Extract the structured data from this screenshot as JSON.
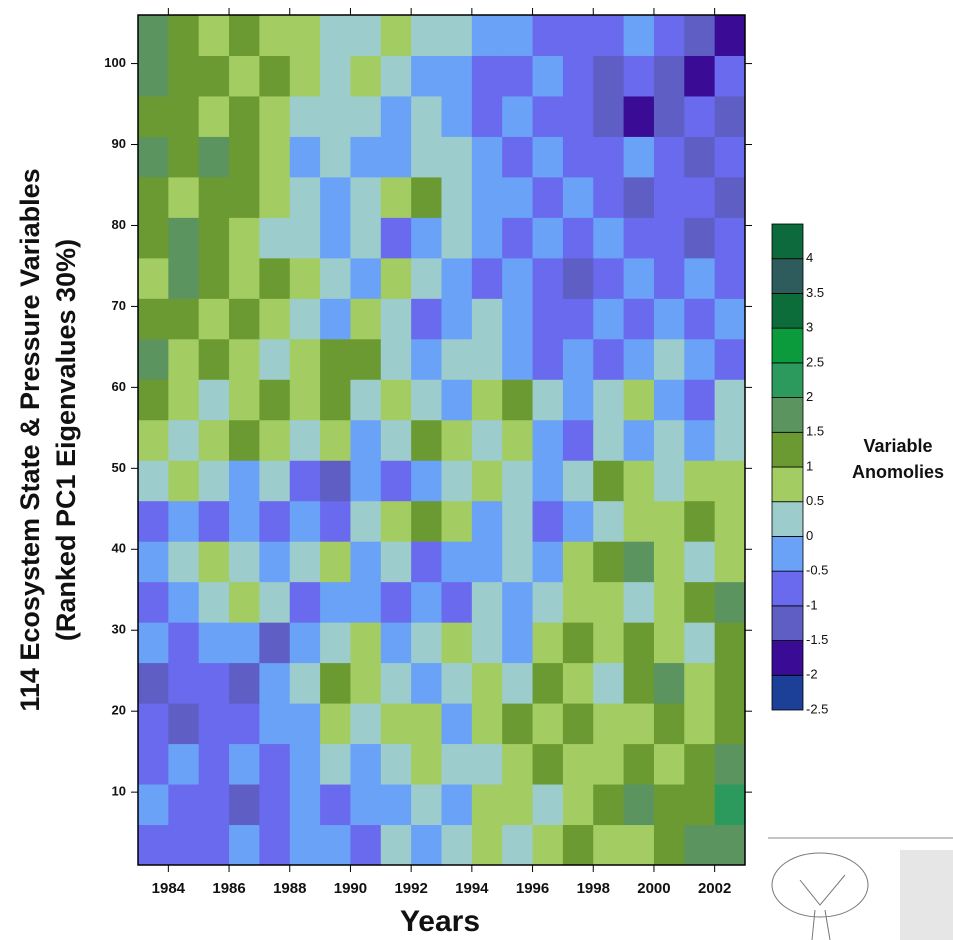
{
  "chart_data": {
    "type": "heatmap",
    "xlabel": "Years",
    "ylabel": [
      "114 Ecosystem State & Pressure Variables",
      "(Ranked PC1 Eigenvalues 30%)"
    ],
    "x": [
      1983,
      1984,
      1985,
      1986,
      1987,
      1988,
      1989,
      1990,
      1991,
      1992,
      1993,
      1994,
      1995,
      1996,
      1997,
      1998,
      1999,
      2000,
      2001,
      2002,
      2003
    ],
    "y": [
      1,
      6,
      11,
      16,
      21,
      26,
      31,
      36,
      41,
      46,
      51,
      56,
      61,
      66,
      71,
      76,
      81,
      86,
      91,
      96,
      101,
      106
    ],
    "z": [
      [
        -1,
        -1,
        -1,
        -0.5,
        -1,
        -0.5,
        -0.5,
        -1,
        0,
        -0.5,
        0,
        0.5,
        0,
        0.5,
        1,
        0.5,
        0.5,
        1,
        1.5,
        1.5
      ],
      [
        -0.5,
        -1,
        -1,
        -1.5,
        -1,
        -0.5,
        -1,
        -0.5,
        -0.5,
        0,
        -0.5,
        0.5,
        0.5,
        0,
        0.5,
        1,
        1.5,
        1,
        1,
        2
      ],
      [
        -1,
        -0.5,
        -1,
        -0.5,
        -1,
        -0.5,
        0,
        -0.5,
        0,
        0.5,
        0,
        0,
        0.5,
        1,
        0.5,
        0.5,
        1,
        0.5,
        1,
        1.5
      ],
      [
        -1,
        -1.5,
        -1,
        -1,
        -0.5,
        -0.5,
        0.5,
        0,
        0.5,
        0.5,
        -0.5,
        0.5,
        1,
        0.5,
        1,
        0.5,
        0.5,
        1,
        0.5,
        1
      ],
      [
        -1.5,
        -1,
        -1,
        -1.5,
        -0.5,
        0,
        1,
        0.5,
        0,
        -0.5,
        0,
        0.5,
        0,
        1,
        0.5,
        0,
        1,
        1.5,
        0.5,
        1
      ],
      [
        -0.5,
        -1,
        -0.5,
        -0.5,
        -1.5,
        -0.5,
        0,
        0.5,
        -0.5,
        0,
        0.5,
        0,
        -0.5,
        0.5,
        1,
        0.5,
        1,
        0.5,
        0,
        1
      ],
      [
        -1,
        -0.5,
        0,
        0.5,
        0,
        -1,
        -0.5,
        -0.5,
        -1,
        -0.5,
        -1,
        0,
        -0.5,
        0,
        0.5,
        0.5,
        0,
        0.5,
        1,
        1.5
      ],
      [
        -0.5,
        0,
        0.5,
        0,
        -0.5,
        0,
        0.5,
        -0.5,
        0,
        -1,
        -0.5,
        -0.5,
        0,
        -0.5,
        0.5,
        1,
        1.5,
        0.5,
        0,
        0.5
      ],
      [
        -1,
        -0.5,
        -1,
        -0.5,
        -1,
        -0.5,
        -1,
        0,
        0.5,
        1,
        0.5,
        -0.5,
        0,
        -1,
        -0.5,
        0,
        0.5,
        0.5,
        1,
        0.5
      ],
      [
        0,
        0.5,
        0,
        -0.5,
        0,
        -1,
        -1.5,
        -0.5,
        -1,
        -0.5,
        0,
        0.5,
        0,
        -0.5,
        0,
        1,
        0.5,
        0,
        0.5,
        0.5
      ],
      [
        0.5,
        0,
        0.5,
        1,
        0.5,
        0,
        0.5,
        -0.5,
        0,
        1,
        0.5,
        0,
        0.5,
        -0.5,
        -1,
        0,
        -0.5,
        0,
        -0.5,
        0
      ],
      [
        1,
        0.5,
        0,
        0.5,
        1,
        0.5,
        1,
        0,
        0.5,
        0,
        -0.5,
        0.5,
        1,
        0,
        -0.5,
        0,
        0.5,
        -0.5,
        -1,
        0
      ],
      [
        1.5,
        0.5,
        1,
        0.5,
        0,
        0.5,
        1,
        1,
        0,
        -0.5,
        0,
        0,
        -0.5,
        -1,
        -0.5,
        -1,
        -0.5,
        0,
        -0.5,
        -1
      ],
      [
        1,
        1,
        0.5,
        1,
        0.5,
        0,
        -0.5,
        0.5,
        0,
        -1,
        -0.5,
        0,
        -0.5,
        -1,
        -1,
        -0.5,
        -1,
        -0.5,
        -1,
        -0.5
      ],
      [
        0.5,
        1.5,
        1,
        0.5,
        1,
        0.5,
        0,
        -0.5,
        0.5,
        0,
        -0.5,
        -1,
        -0.5,
        -1,
        -1.5,
        -1,
        -0.5,
        -1,
        -0.5,
        -1
      ],
      [
        1,
        1.5,
        1,
        0.5,
        0,
        0,
        -0.5,
        0,
        -1,
        -0.5,
        0,
        -0.5,
        -1,
        -0.5,
        -1,
        -0.5,
        -1,
        -1,
        -1.5,
        -1
      ],
      [
        1,
        0.5,
        1,
        1,
        0.5,
        0,
        -0.5,
        0,
        0.5,
        1,
        0,
        -0.5,
        -0.5,
        -1,
        -0.5,
        -1,
        -1.5,
        -1,
        -1,
        -1.5
      ],
      [
        1.5,
        1,
        1.5,
        1,
        0.5,
        -0.5,
        0,
        -0.5,
        -0.5,
        0,
        0,
        -0.5,
        -1,
        -0.5,
        -1,
        -1,
        -0.5,
        -1,
        -1.5,
        -1
      ],
      [
        1,
        1,
        0.5,
        1,
        0.5,
        0,
        0,
        0,
        -0.5,
        0,
        -0.5,
        -1,
        -0.5,
        -1,
        -1,
        -1.5,
        -2,
        -1.5,
        -1,
        -1.5
      ],
      [
        1.5,
        1,
        1,
        0.5,
        1,
        0.5,
        0,
        0.5,
        0,
        -0.5,
        -0.5,
        -1,
        -1,
        -0.5,
        -1,
        -1.5,
        -1,
        -1.5,
        -2,
        -1
      ],
      [
        1.5,
        1,
        0.5,
        1,
        0.5,
        0.5,
        0,
        0,
        0.5,
        0,
        0,
        -0.5,
        -0.5,
        -1,
        -1,
        -1,
        -0.5,
        -1,
        -1.5,
        -2
      ]
    ],
    "xlim": [
      1983,
      2003
    ],
    "xticks": [
      1984,
      1986,
      1988,
      1990,
      1992,
      1994,
      1996,
      1998,
      2000,
      2002
    ],
    "ylim": [
      1,
      106
    ],
    "yticks": [
      10,
      20,
      30,
      40,
      50,
      60,
      70,
      80,
      90,
      100
    ],
    "colorbar": {
      "title": [
        "Variable",
        "Anomolies"
      ],
      "lim": [
        -2.5,
        4.5
      ],
      "ticks": [
        -2.5,
        -2,
        -1.5,
        -1,
        -0.5,
        0,
        0.5,
        1,
        1.5,
        2,
        2.5,
        3,
        3.5,
        4
      ],
      "colors": [
        "#1c3f98",
        "#3a0c96",
        "#5e5ec4",
        "#6a6aee",
        "#69a2f6",
        "#9ccdcc",
        "#a3cc62",
        "#6b9a32",
        "#5c9460",
        "#2c9a5c",
        "#0b9b3c",
        "#0c6c3a",
        "#2e5c5c",
        "#0d6a3c"
      ]
    }
  }
}
